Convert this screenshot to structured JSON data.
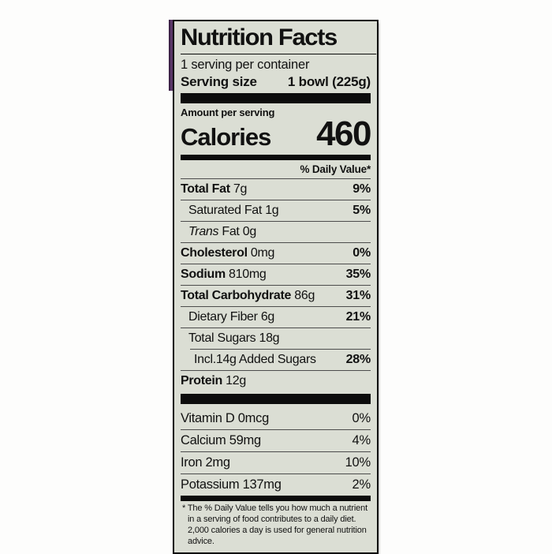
{
  "page": {
    "background": "#fdfdfc"
  },
  "packaging": {
    "strip_color": "#5a3768"
  },
  "label": {
    "bg_color": "#dbded4",
    "title": "Nutrition Facts",
    "servings_per_container": "1 serving per container",
    "serving_size_label": "Serving size",
    "serving_size_value": "1 bowl (225g)",
    "amount_per_serving": "Amount per serving",
    "calories_label": "Calories",
    "calories_value": "460",
    "daily_value_header": "% Daily Value*",
    "rows": [
      {
        "bold": "Total Fat",
        "text": " 7g",
        "dv": "9%"
      },
      {
        "text": "Saturated Fat 1g",
        "dv": "5%"
      },
      {
        "italic": "Trans",
        "text": " Fat 0g"
      },
      {
        "bold": "Cholesterol",
        "text": " 0mg",
        "dv": "0%"
      },
      {
        "bold": "Sodium",
        "text": " 810mg",
        "dv": "35%"
      },
      {
        "bold": "Total Carbohydrate",
        "text": " 86g",
        "dv": "31%"
      },
      {
        "text": "Dietary Fiber 6g",
        "dv": "21%"
      },
      {
        "text": "Total Sugars 18g"
      },
      {
        "text": "Incl.14g Added Sugars",
        "dv": "28%"
      },
      {
        "bold": "Protein",
        "text": " 12g"
      }
    ],
    "vitamins": [
      {
        "text": "Vitamin D 0mcg",
        "dv": "0%"
      },
      {
        "text": "Calcium 59mg",
        "dv": "4%"
      },
      {
        "text": "Iron 2mg",
        "dv": "10%"
      },
      {
        "text": "Potassium 137mg",
        "dv": "2%"
      }
    ],
    "footnote": "* The % Daily Value tells you how much a nutrient in a serving of food contributes to a daily diet. 2,000 calories a day is used for general nutrition advice."
  }
}
